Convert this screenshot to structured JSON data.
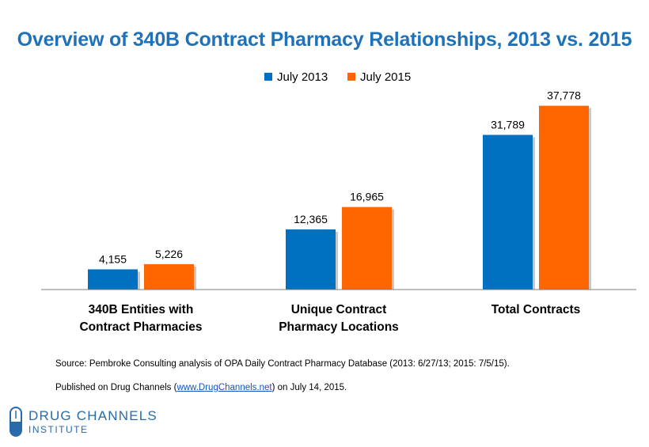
{
  "chart_data": {
    "type": "bar",
    "title": "Overview of 340B Contract Pharmacy Relationships, 2013 vs. 2015",
    "categories": [
      [
        "340B Entities with",
        "Contract Pharmacies"
      ],
      [
        "Unique Contract",
        "Pharmacy Locations"
      ],
      [
        "Total Contracts"
      ]
    ],
    "series": [
      {
        "name": "July 2013",
        "color": "#0070c0",
        "values": [
          4155,
          12365,
          31789
        ],
        "labels": [
          "4,155",
          "12,365",
          "31,789"
        ]
      },
      {
        "name": "July 2015",
        "color": "#ff6600",
        "values": [
          5226,
          16965,
          37778
        ],
        "labels": [
          "5,226",
          "16,965",
          "37,778"
        ]
      }
    ],
    "ylim": [
      0,
      40000
    ],
    "grid": false,
    "legend": "top-center"
  },
  "footnotes": {
    "source": "Source: Pembroke Consulting analysis of OPA Daily Contract Pharmacy Database (2013: 6/27/13; 2015: 7/5/15).",
    "published_prefix": "Published on Drug Channels (",
    "published_link": "www.DrugChannels.net",
    "published_suffix": ") on July 14, 2015."
  },
  "logo": {
    "line1": "DRUG CHANNELS",
    "line2": "INSTITUTE",
    "icon": "capsule-icon"
  }
}
